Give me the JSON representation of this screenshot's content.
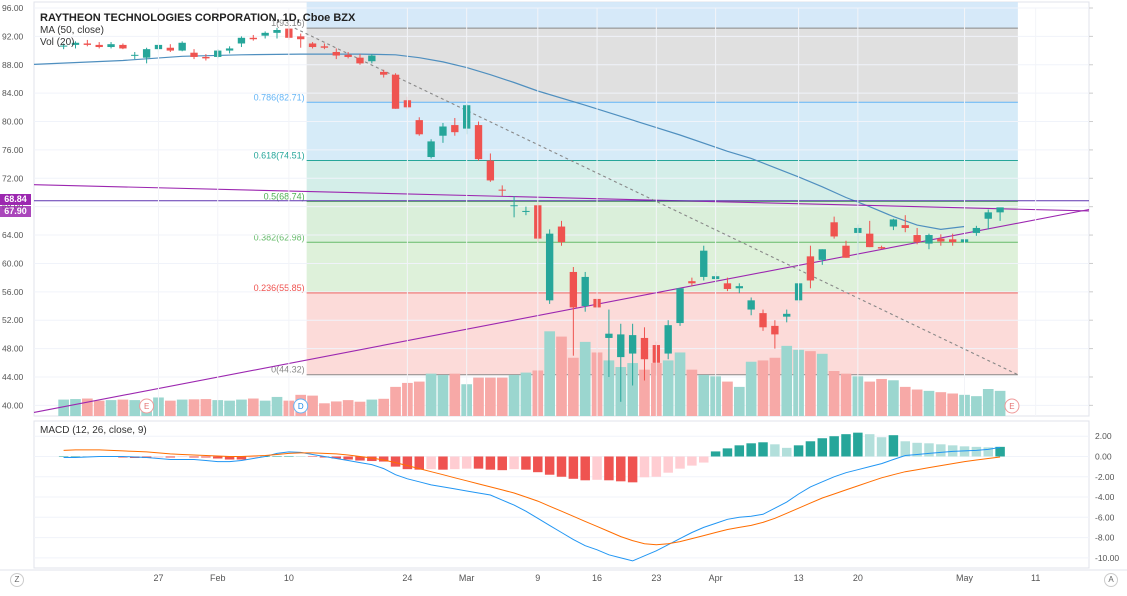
{
  "title": "RAYTHEON TECHNOLOGIES CORPORATION, 1D, Cboe BZX",
  "ma_label": "MA (50, close)",
  "vol_label": "Vol (20)",
  "macd_label": "MACD (12, 26, close, 9)",
  "price_tags": {
    "resistance": "68.84",
    "last": "67.90"
  },
  "corners": {
    "left": "Z",
    "right": "A"
  },
  "colors": {
    "up": "#26a69a",
    "down": "#ef5350",
    "ma": "#4f8fbf",
    "trend": "#9c27b0",
    "macd_line": "#2196f3",
    "signal_line": "#ff6d00"
  },
  "chart_data": [
    {
      "type": "candlestick",
      "title": "RAYTHEON TECHNOLOGIES CORPORATION, 1D, Cboe BZX",
      "ylim": [
        38.5,
        96
      ],
      "y_ticks": [
        "96.00",
        "92.00",
        "88.00",
        "84.00",
        "80.00",
        "76.00",
        "72.00",
        "68.00",
        "64.00",
        "60.00",
        "56.00",
        "52.00",
        "48.00",
        "44.00",
        "40.00"
      ],
      "x_ticks": [
        "27",
        "Feb",
        "10",
        "24",
        "Mar",
        "9",
        "16",
        "23",
        "Apr",
        "13",
        "20",
        "May",
        "11"
      ],
      "x_tick_index": [
        8,
        13,
        19,
        29,
        34,
        40,
        45,
        50,
        55,
        62,
        67,
        76,
        82
      ],
      "x_range": [
        -2.5,
        86.5
      ],
      "candles": [
        [
          90.6,
          91.0,
          90.2,
          90.7
        ],
        [
          90.8,
          91.3,
          90.3,
          91.1
        ],
        [
          91.0,
          91.5,
          90.6,
          90.8
        ],
        [
          90.8,
          91.2,
          90.3,
          90.5
        ],
        [
          90.5,
          91.2,
          90.3,
          90.9
        ],
        [
          90.8,
          91.0,
          90.2,
          90.3
        ],
        [
          89.3,
          89.8,
          88.8,
          89.4
        ],
        [
          89.0,
          90.4,
          88.2,
          90.2
        ],
        [
          90.2,
          91.0,
          89.7,
          90.8
        ],
        [
          90.4,
          90.9,
          89.8,
          90.0
        ],
        [
          90.0,
          91.3,
          89.9,
          91.1
        ],
        [
          89.7,
          90.2,
          88.8,
          89.1
        ],
        [
          89.1,
          89.5,
          88.6,
          88.9
        ],
        [
          89.1,
          90.2,
          88.9,
          90.0
        ],
        [
          90.0,
          90.6,
          89.6,
          90.3
        ],
        [
          91.0,
          92.0,
          90.5,
          91.8
        ],
        [
          91.8,
          92.2,
          91.4,
          91.6
        ],
        [
          92.1,
          92.7,
          91.7,
          92.5
        ],
        [
          92.5,
          93.2,
          91.7,
          92.9
        ],
        [
          93.1,
          93.6,
          91.5,
          91.8
        ],
        [
          92.0,
          92.4,
          90.4,
          91.6
        ],
        [
          91.0,
          91.2,
          90.3,
          90.5
        ],
        [
          90.6,
          91.0,
          90.2,
          90.4
        ],
        [
          89.8,
          90.3,
          88.8,
          89.3
        ],
        [
          89.4,
          89.8,
          88.9,
          89.1
        ],
        [
          89.0,
          89.5,
          88.0,
          88.2
        ],
        [
          88.5,
          89.5,
          88.2,
          89.3
        ],
        [
          87.0,
          87.3,
          86.2,
          86.6
        ],
        [
          86.6,
          86.8,
          81.8,
          81.8
        ],
        [
          83.0,
          83.5,
          81.7,
          82.0
        ],
        [
          80.2,
          80.6,
          78.0,
          78.2
        ],
        [
          75.0,
          77.5,
          74.8,
          77.2
        ],
        [
          78.0,
          79.8,
          77.0,
          79.3
        ],
        [
          79.5,
          80.5,
          78.0,
          78.5
        ],
        [
          79.0,
          82.5,
          78.2,
          82.3
        ],
        [
          79.5,
          80.0,
          74.5,
          74.7
        ],
        [
          74.5,
          75.5,
          71.5,
          71.7
        ],
        [
          70.4,
          71.0,
          69.5,
          70.3
        ],
        [
          68.2,
          69.5,
          66.5,
          68.2
        ],
        [
          67.4,
          68.0,
          66.8,
          67.4
        ],
        [
          68.2,
          68.6,
          63.0,
          63.5
        ],
        [
          54.8,
          64.8,
          54.3,
          64.2
        ],
        [
          65.2,
          66.0,
          62.5,
          63.0
        ],
        [
          58.8,
          59.5,
          47.0,
          53.8
        ],
        [
          54.0,
          58.8,
          53.2,
          58.1
        ],
        [
          55.0,
          56.0,
          47.5,
          53.8
        ],
        [
          49.5,
          53.5,
          44.0,
          50.1
        ],
        [
          46.8,
          51.5,
          40.5,
          50.0
        ],
        [
          47.3,
          51.5,
          42.8,
          49.9
        ],
        [
          49.5,
          51.0,
          43.5,
          46.5
        ],
        [
          48.5,
          49.0,
          44.2,
          46.0
        ],
        [
          47.3,
          52.0,
          46.5,
          51.3
        ],
        [
          51.6,
          56.5,
          51.2,
          56.5
        ],
        [
          57.5,
          58.0,
          56.8,
          57.2
        ],
        [
          58.1,
          62.5,
          57.6,
          61.8
        ],
        [
          57.8,
          58.8,
          57.3,
          58.2
        ],
        [
          57.2,
          58.0,
          56.1,
          56.4
        ],
        [
          56.5,
          57.2,
          55.8,
          56.8
        ],
        [
          53.5,
          55.2,
          52.7,
          54.8
        ],
        [
          53.0,
          53.5,
          50.5,
          51.0
        ],
        [
          51.2,
          52.0,
          48.0,
          50.0
        ],
        [
          52.5,
          53.5,
          51.7,
          52.9
        ],
        [
          54.8,
          57.2,
          54.4,
          57.2
        ],
        [
          61.0,
          62.5,
          56.5,
          57.6
        ],
        [
          60.5,
          62.0,
          59.8,
          62.0
        ],
        [
          65.8,
          66.6,
          63.5,
          63.8
        ],
        [
          62.5,
          63.2,
          60.8,
          60.8
        ],
        [
          64.3,
          65.5,
          60.5,
          65.0
        ],
        [
          64.2,
          66.0,
          62.3,
          62.3
        ],
        [
          62.3,
          62.5,
          62.0,
          62.1
        ],
        [
          65.2,
          66.3,
          64.7,
          66.2
        ],
        [
          65.4,
          66.8,
          64.4,
          65.0
        ],
        [
          64.0,
          65.0,
          62.7,
          63.0
        ],
        [
          62.8,
          64.2,
          62.0,
          64.0
        ],
        [
          63.5,
          64.1,
          62.5,
          63.1
        ],
        [
          63.4,
          64.2,
          62.5,
          63.0
        ],
        [
          63.0,
          63.5,
          62.8,
          63.4
        ],
        [
          64.3,
          65.3,
          63.9,
          65.0
        ],
        [
          66.3,
          67.6,
          64.8,
          67.2
        ],
        [
          67.2,
          67.8,
          66.0,
          67.9
        ]
      ],
      "volume": [
        0.62,
        0.64,
        0.66,
        0.58,
        0.6,
        0.62,
        0.6,
        0.55,
        0.7,
        0.58,
        0.62,
        0.63,
        0.64,
        0.6,
        0.58,
        0.62,
        0.66,
        0.58,
        0.72,
        0.58,
        0.8,
        0.77,
        0.48,
        0.55,
        0.6,
        0.54,
        0.62,
        0.65,
        1.1,
        1.25,
        1.3,
        1.6,
        1.55,
        1.6,
        1.2,
        1.45,
        1.45,
        1.45,
        1.55,
        1.64,
        1.72,
        3.2,
        3.0,
        2.2,
        2.8,
        2.4,
        2.1,
        1.85,
        2.0,
        1.75,
        2.0,
        2.1,
        2.4,
        1.75,
        1.55,
        1.5,
        1.3,
        1.1,
        2.05,
        2.1,
        2.2,
        2.65,
        2.5,
        2.45,
        2.35,
        1.7,
        1.6,
        1.5,
        1.3,
        1.4,
        1.35,
        1.1,
        1.0,
        0.95,
        0.9,
        0.85,
        0.8,
        0.75,
        1.02,
        0.95
      ],
      "ma50": [
        [
          -2.5,
          88.05
        ],
        [
          5,
          88.6
        ],
        [
          10,
          89.2
        ],
        [
          15,
          89.4
        ],
        [
          20,
          89.5
        ],
        [
          25,
          89.5
        ],
        [
          28,
          89.4
        ],
        [
          30,
          89.0
        ],
        [
          32,
          88.4
        ],
        [
          34,
          87.6
        ],
        [
          36,
          86.6
        ],
        [
          38,
          85.5
        ],
        [
          40,
          84.3
        ],
        [
          44,
          82.3
        ],
        [
          48,
          80.2
        ],
        [
          52,
          78.1
        ],
        [
          56,
          75.8
        ],
        [
          58,
          74.8
        ],
        [
          60,
          73.5
        ],
        [
          62,
          72.2
        ],
        [
          64,
          70.8
        ],
        [
          66,
          69.3
        ],
        [
          68,
          68.0
        ],
        [
          70,
          66.6
        ],
        [
          72,
          65.4
        ],
        [
          74,
          64.8
        ],
        [
          76,
          65.2
        ]
      ],
      "fibonacci": [
        {
          "level": "1",
          "price": 93.16,
          "label": "1(93.16)"
        },
        {
          "level": "0.786",
          "price": 82.71,
          "label": "0.786(82.71)"
        },
        {
          "level": "0.618",
          "price": 74.51,
          "label": "0.618(74.51)"
        },
        {
          "level": "0.5",
          "price": 68.74,
          "label": "0.5(68.74)"
        },
        {
          "level": "0.382",
          "price": 62.98,
          "label": "0.382(62.98)"
        },
        {
          "level": "0.236",
          "price": 55.85,
          "label": "0.236(55.85)"
        },
        {
          "level": "0",
          "price": 44.32,
          "label": "0(44.32)"
        }
      ],
      "fib_x_range": [
        20.5,
        80.5
      ],
      "trend_lines": [
        {
          "points": [
            [
              -2.5,
              71.1
            ],
            [
              86.5,
              67.4
            ]
          ],
          "style": "solid"
        },
        {
          "points": [
            [
              -2.5,
              39.0
            ],
            [
              86.5,
              67.6
            ]
          ],
          "style": "solid"
        },
        {
          "points": [
            [
              19.5,
              93.16
            ],
            [
              80.5,
              44.32
            ]
          ],
          "style": "dashed"
        }
      ],
      "horizontal_line": 68.84,
      "earnings_markers": [
        {
          "x": 7,
          "label": "E"
        },
        {
          "x": 20,
          "label": "D"
        },
        {
          "x": 80,
          "label": "E"
        }
      ]
    },
    {
      "type": "macd",
      "title": "MACD (12, 26, close, 9)",
      "ylim": [
        -11,
        3.5
      ],
      "y_ticks": [
        "2.00",
        "0.00",
        "-2.00",
        "-4.00",
        "-6.00",
        "-8.00",
        "-10.00"
      ],
      "histogram": [
        0,
        0,
        0,
        0,
        -0.05,
        -0.1,
        -0.15,
        -0.15,
        -0.1,
        -0.1,
        -0.05,
        -0.1,
        -0.1,
        -0.2,
        -0.3,
        -0.3,
        -0.1,
        0,
        0.05,
        0.05,
        0,
        -0.05,
        -0.1,
        -0.2,
        -0.3,
        -0.4,
        -0.45,
        -0.5,
        -1.0,
        -1.25,
        -1.3,
        -1.25,
        -1.3,
        -1.25,
        -1.2,
        -1.2,
        -1.3,
        -1.35,
        -1.25,
        -1.3,
        -1.55,
        -1.8,
        -2.0,
        -2.2,
        -2.35,
        -2.3,
        -2.35,
        -2.45,
        -2.55,
        -2.05,
        -2.0,
        -1.6,
        -1.2,
        -0.9,
        -0.6,
        0.5,
        0.8,
        1.1,
        1.3,
        1.4,
        1.2,
        0.85,
        1.1,
        1.5,
        1.8,
        2.0,
        2.2,
        2.35,
        2.2,
        1.9,
        2.1,
        1.5,
        1.35,
        1.3,
        1.2,
        1.1,
        1.0,
        0.95,
        0.9,
        0.95
      ],
      "macd_line": [
        -0.1,
        -0.1,
        -0.05,
        0,
        0,
        0,
        -0.05,
        -0.1,
        -0.2,
        -0.3,
        -0.3,
        -0.3,
        -0.4,
        -0.5,
        -0.5,
        -0.4,
        -0.2,
        0,
        0.3,
        0.45,
        0.4,
        0.2,
        0,
        -0.2,
        -0.4,
        -0.6,
        -0.8,
        -1.2,
        -1.8,
        -2.2,
        -2.5,
        -2.8,
        -3.0,
        -3.2,
        -3.4,
        -3.6,
        -3.8,
        -4.3,
        -4.8,
        -5.4,
        -6.1,
        -6.8,
        -7.5,
        -8.2,
        -8.8,
        -9.2,
        -9.7,
        -10.0,
        -10.3,
        -9.8,
        -9.3,
        -8.7,
        -8.1,
        -7.5,
        -7.0,
        -6.6,
        -6.2,
        -6.0,
        -5.9,
        -5.7,
        -5.1,
        -4.5,
        -3.7,
        -3.0,
        -2.5,
        -2.0,
        -1.6,
        -1.3,
        -1.0,
        -0.7,
        -0.3,
        0.1,
        0.2,
        0.3,
        0.4,
        0.5,
        0.55,
        0.6,
        0.7,
        0.9
      ],
      "signal_line": [
        0.6,
        0.65,
        0.65,
        0.65,
        0.6,
        0.55,
        0.5,
        0.45,
        0.35,
        0.25,
        0.2,
        0.15,
        0.1,
        0.05,
        0,
        0,
        0.05,
        0.1,
        0.2,
        0.3,
        0.35,
        0.35,
        0.3,
        0.25,
        0.15,
        0,
        -0.15,
        -0.35,
        -0.6,
        -0.9,
        -1.2,
        -1.5,
        -1.8,
        -2.1,
        -2.4,
        -2.7,
        -3.0,
        -3.3,
        -3.6,
        -4.0,
        -4.4,
        -4.9,
        -5.4,
        -5.9,
        -6.4,
        -6.9,
        -7.4,
        -7.9,
        -8.3,
        -8.6,
        -8.7,
        -8.6,
        -8.4,
        -8.1,
        -7.8,
        -7.5,
        -7.2,
        -7.0,
        -6.8,
        -6.5,
        -6.1,
        -5.6,
        -5.1,
        -4.6,
        -4.1,
        -3.7,
        -3.3,
        -2.9,
        -2.5,
        -2.1,
        -1.8,
        -1.5,
        -1.3,
        -1.1,
        -0.9,
        -0.7,
        -0.5,
        -0.35,
        -0.2,
        -0.05
      ]
    }
  ]
}
